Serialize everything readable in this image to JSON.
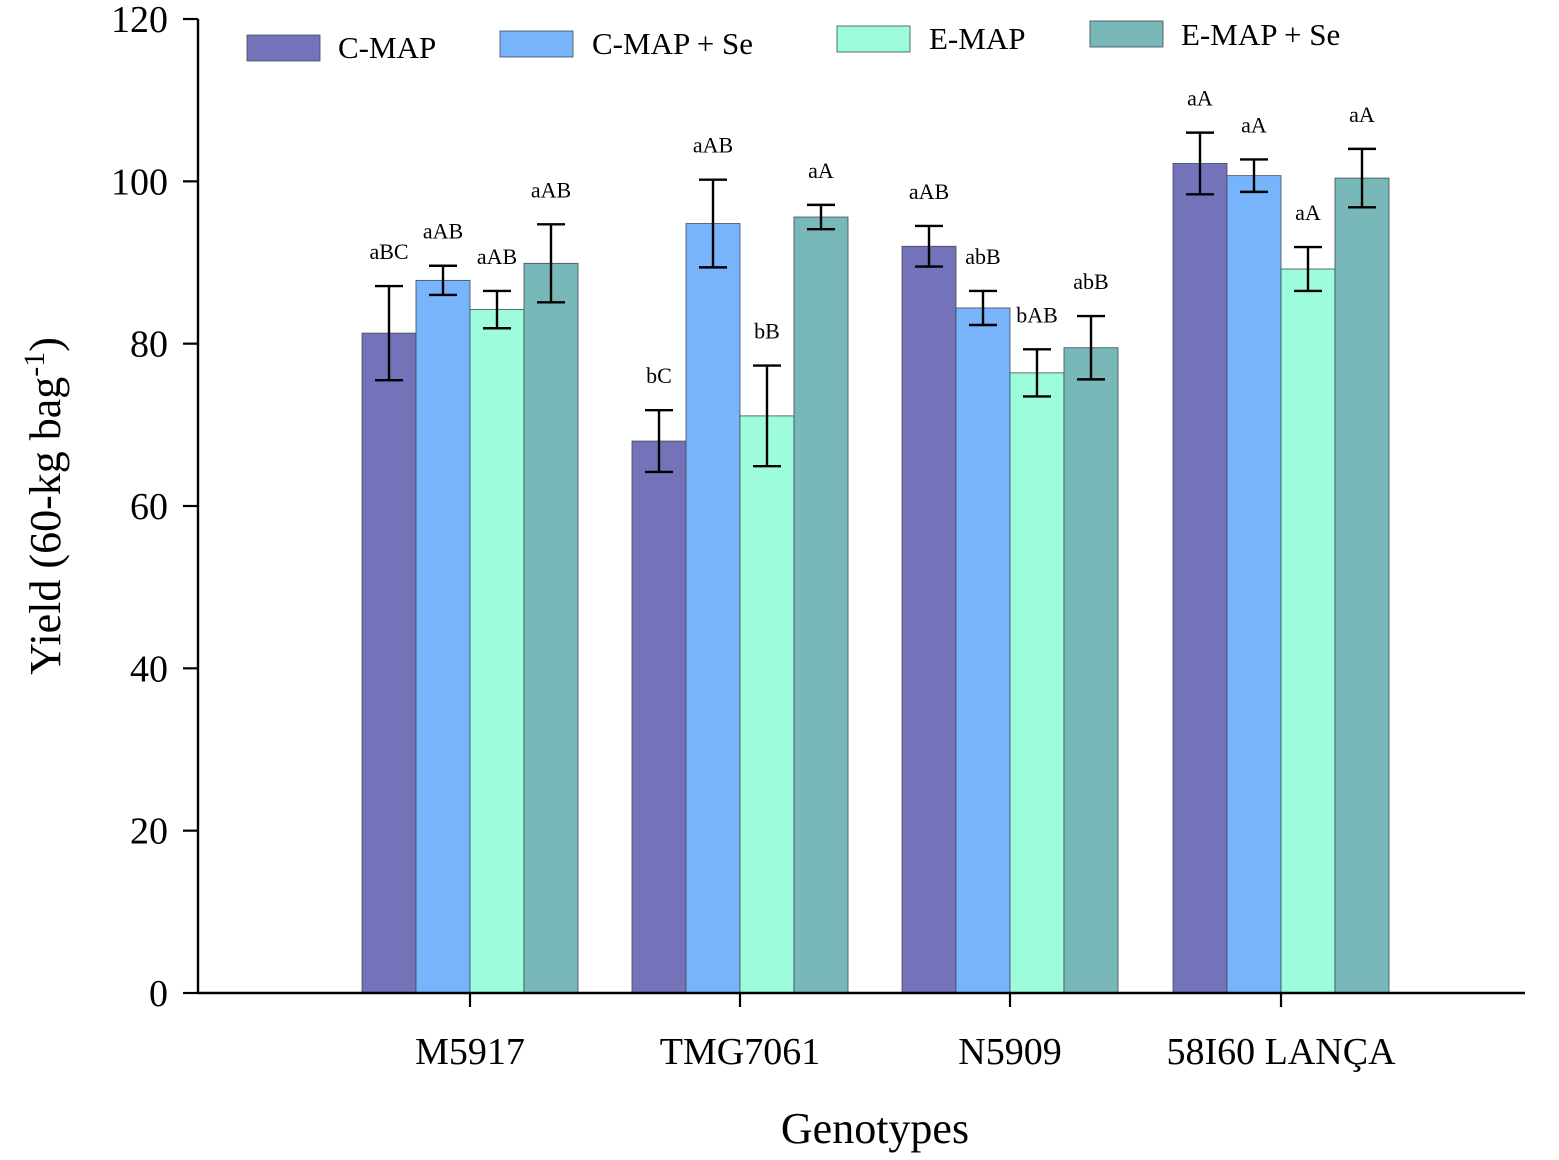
{
  "chart_data": {
    "type": "bar",
    "title": "",
    "xlabel": "Genotypes",
    "ylabel": "Yield (60-kg bag",
    "ylabel_superscript": "-1",
    "ylabel_suffix": ")",
    "ylim": [
      0,
      120
    ],
    "yticks": [
      0,
      20,
      40,
      60,
      80,
      100,
      120
    ],
    "grid": false,
    "legend_position": "top",
    "categories": [
      "M5917",
      "TMG7061",
      "N5909",
      "58I60 LANÇA"
    ],
    "series": [
      {
        "name": "C-MAP",
        "color": "#7472b8",
        "values": [
          81.3,
          68.0,
          92.0,
          102.2
        ],
        "errors": [
          5.8,
          3.8,
          2.5,
          3.8
        ],
        "labels": [
          "aBC",
          "bC",
          "aAB",
          "aA"
        ]
      },
      {
        "name": "C-MAP + Se",
        "color": "#78b4fc",
        "values": [
          87.8,
          94.8,
          84.4,
          100.7
        ],
        "errors": [
          1.8,
          5.4,
          2.1,
          2.0
        ],
        "labels": [
          "aAB",
          "aAB",
          "abB",
          "aA"
        ]
      },
      {
        "name": "E-MAP",
        "color": "#9cfcdc",
        "values": [
          84.2,
          71.1,
          76.4,
          89.2
        ],
        "errors": [
          2.3,
          6.2,
          2.9,
          2.7
        ],
        "labels": [
          "aAB",
          "bB",
          "bAB",
          "aA"
        ]
      },
      {
        "name": "E-MAP + Se",
        "color": "#78b8b8",
        "values": [
          89.9,
          95.6,
          79.5,
          100.4
        ],
        "errors": [
          4.8,
          1.5,
          3.9,
          3.6
        ],
        "labels": [
          "aAB",
          "aA",
          "abB",
          "aA"
        ]
      }
    ]
  }
}
